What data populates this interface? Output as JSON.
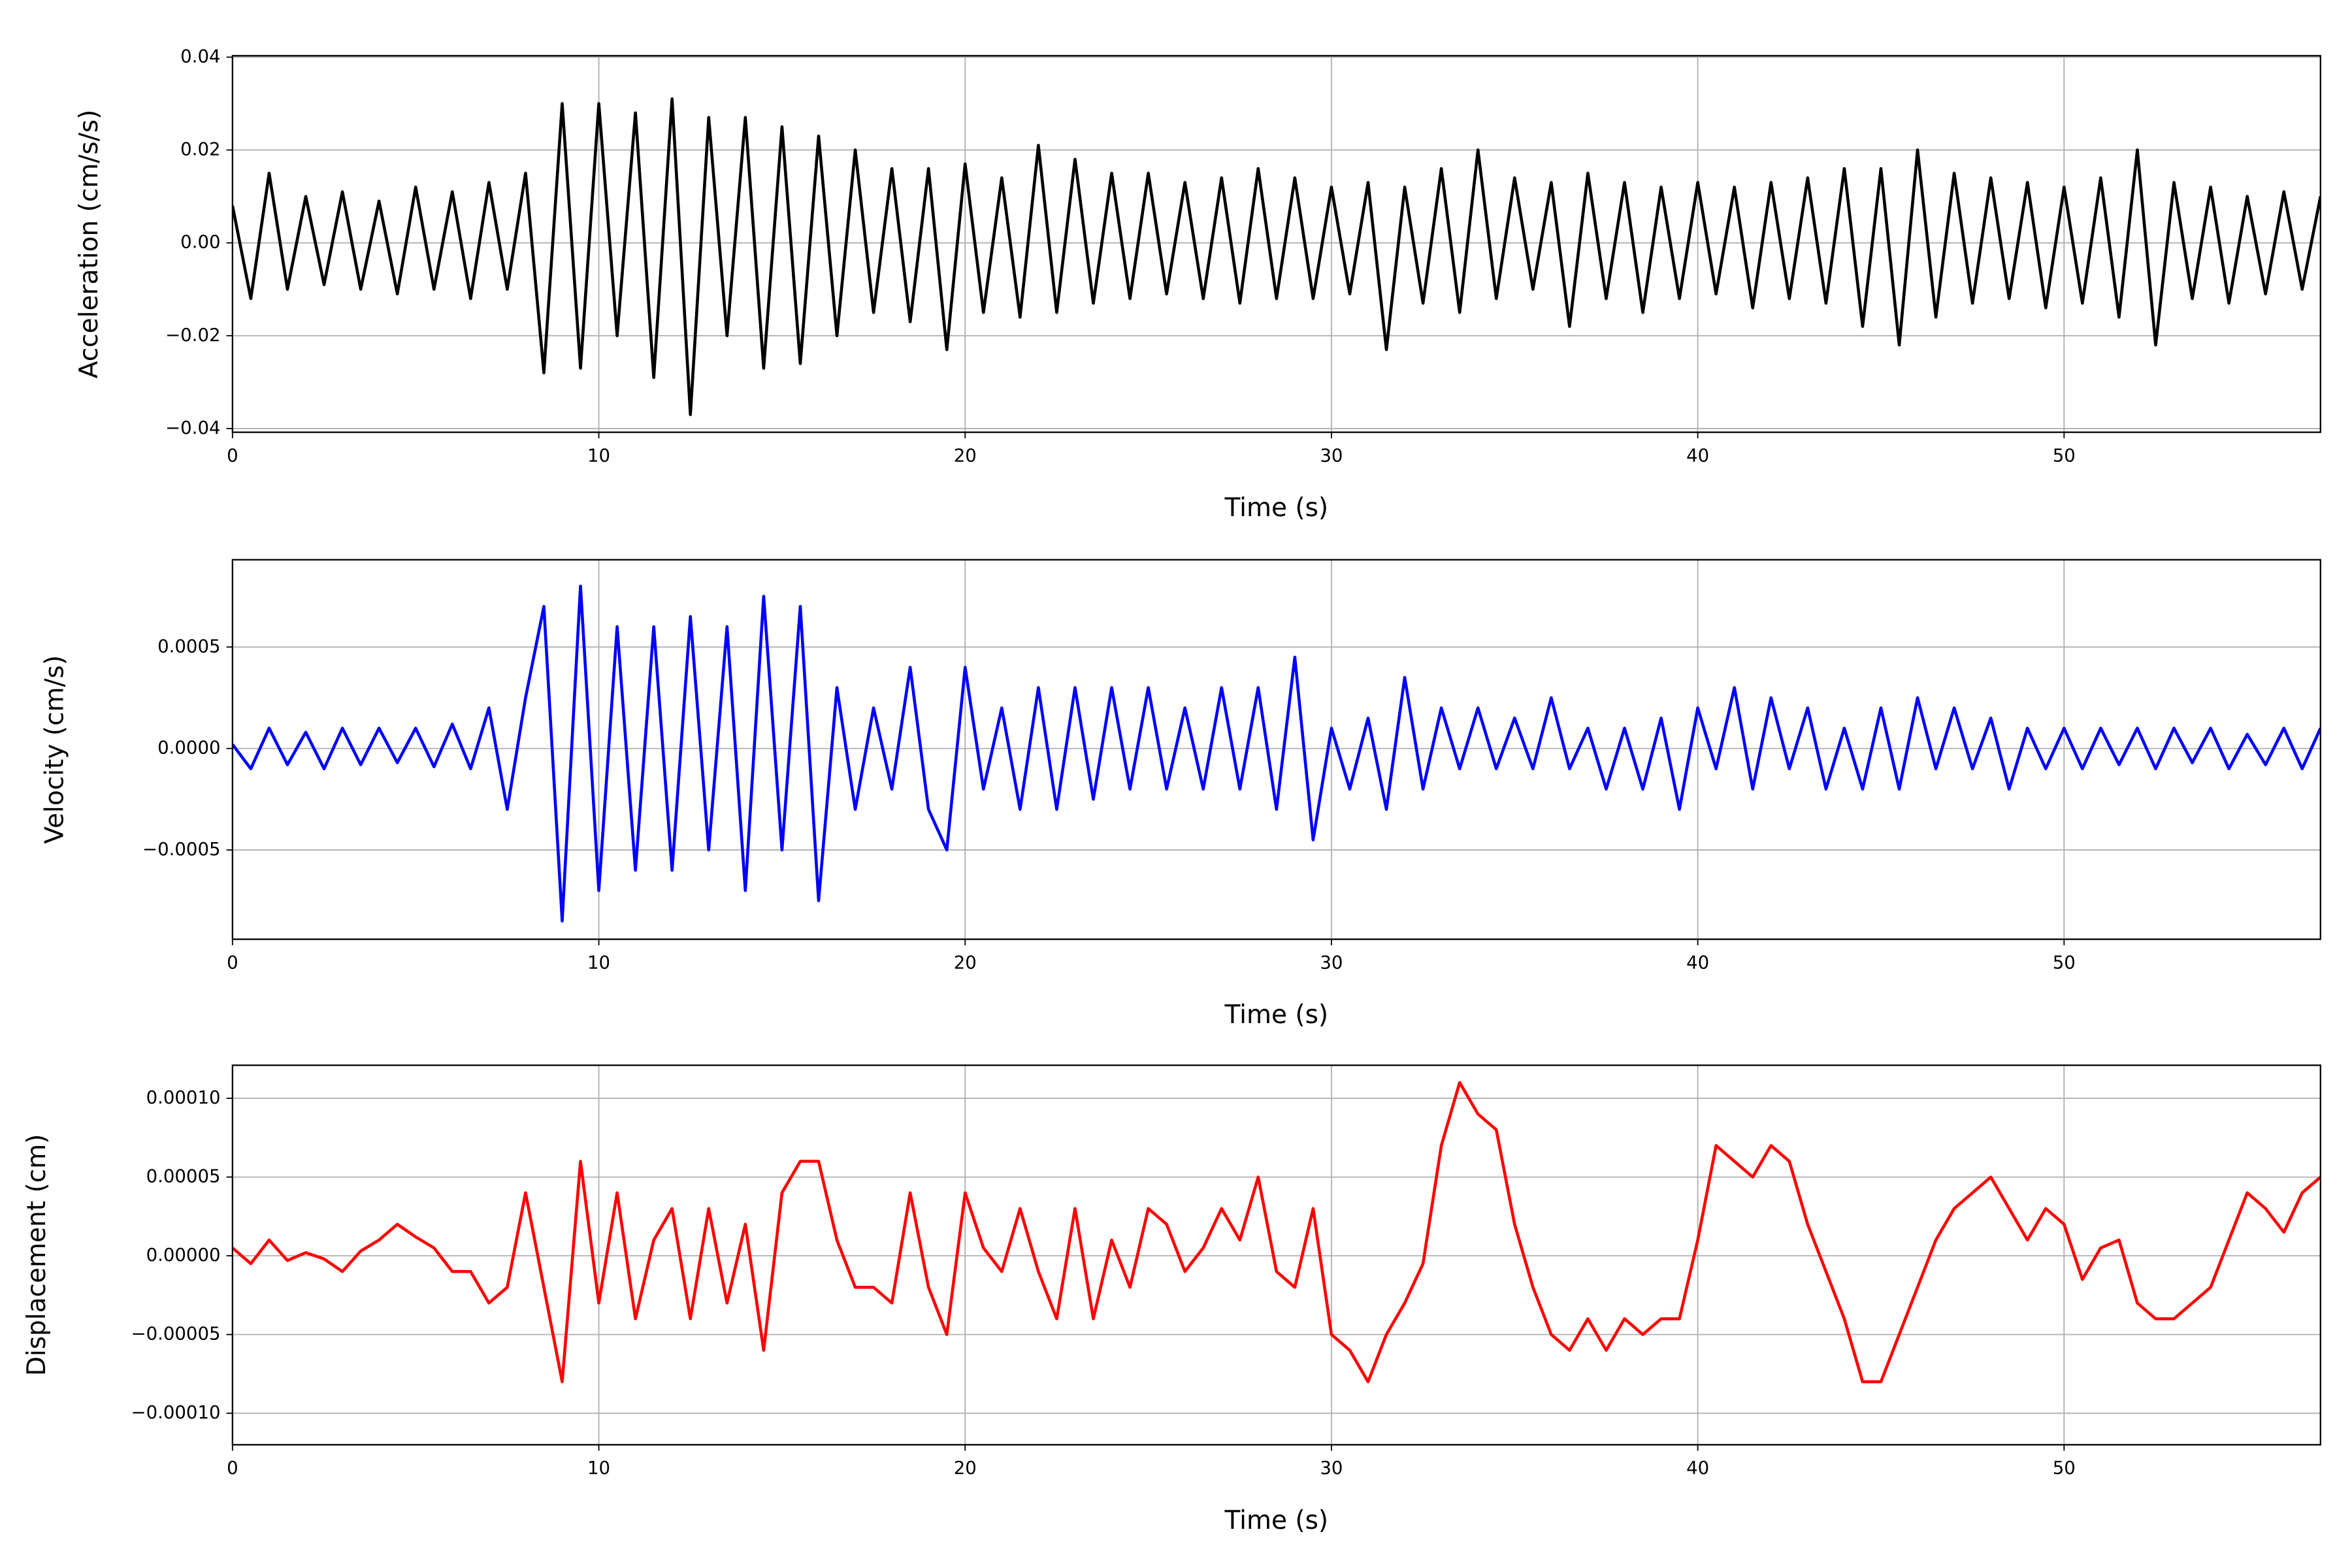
{
  "chart_data": [
    {
      "type": "line",
      "xlabel": "Time (s)",
      "ylabel": "Acceleration (cm/s/s)",
      "color": "#000000",
      "grid": true,
      "xlim": [
        0,
        57
      ],
      "xticks": [
        0,
        10,
        20,
        30,
        40,
        50
      ],
      "ylim": [
        -0.0408,
        0.0403
      ],
      "yticks": [
        {
          "value": -0.04,
          "label": "−0.04"
        },
        {
          "value": -0.02,
          "label": "−0.02"
        },
        {
          "value": 0,
          "label": "0.00"
        },
        {
          "value": 0.02,
          "label": "0.02"
        },
        {
          "value": 0.04,
          "label": "0.04"
        }
      ],
      "x": [
        0,
        0.5,
        1,
        1.5,
        2,
        2.5,
        3,
        3.5,
        4,
        4.5,
        5,
        5.5,
        6,
        6.5,
        7,
        7.5,
        8,
        8.5,
        9,
        9.5,
        10,
        10.5,
        11,
        11.5,
        12,
        12.5,
        13,
        13.5,
        14,
        14.5,
        15,
        15.5,
        16,
        16.5,
        17,
        17.5,
        18,
        18.5,
        19,
        19.5,
        20,
        20.5,
        21,
        21.5,
        22,
        22.5,
        23,
        23.5,
        24,
        24.5,
        25,
        25.5,
        26,
        26.5,
        27,
        27.5,
        28,
        28.5,
        29,
        29.5,
        30,
        30.5,
        31,
        31.5,
        32,
        32.5,
        33,
        33.5,
        34,
        34.5,
        35,
        35.5,
        36,
        36.5,
        37,
        37.5,
        38,
        38.5,
        39,
        39.5,
        40,
        40.5,
        41,
        41.5,
        42,
        42.5,
        43,
        43.5,
        44,
        44.5,
        45,
        45.5,
        46,
        46.5,
        47,
        47.5,
        48,
        48.5,
        49,
        49.5,
        50,
        50.5,
        51,
        51.5,
        52,
        52.5,
        53,
        53.5,
        54,
        54.5,
        55,
        55.5,
        56,
        56.5,
        57
      ],
      "values": [
        0.008,
        -0.012,
        0.015,
        -0.01,
        0.01,
        -0.009,
        0.011,
        -0.01,
        0.009,
        -0.011,
        0.012,
        -0.01,
        0.011,
        -0.012,
        0.013,
        -0.01,
        0.015,
        -0.028,
        0.03,
        -0.027,
        0.03,
        -0.02,
        0.028,
        -0.029,
        0.031,
        -0.037,
        0.027,
        -0.02,
        0.027,
        -0.027,
        0.025,
        -0.026,
        0.023,
        -0.02,
        0.02,
        -0.015,
        0.016,
        -0.017,
        0.016,
        -0.023,
        0.017,
        -0.015,
        0.014,
        -0.016,
        0.021,
        -0.015,
        0.018,
        -0.013,
        0.015,
        -0.012,
        0.015,
        -0.011,
        0.013,
        -0.012,
        0.014,
        -0.013,
        0.016,
        -0.012,
        0.014,
        -0.012,
        0.012,
        -0.011,
        0.013,
        -0.023,
        0.012,
        -0.013,
        0.016,
        -0.015,
        0.02,
        -0.012,
        0.014,
        -0.01,
        0.013,
        -0.018,
        0.015,
        -0.012,
        0.013,
        -0.015,
        0.012,
        -0.012,
        0.013,
        -0.011,
        0.012,
        -0.014,
        0.013,
        -0.012,
        0.014,
        -0.013,
        0.016,
        -0.018,
        0.016,
        -0.022,
        0.02,
        -0.016,
        0.015,
        -0.013,
        0.014,
        -0.012,
        0.013,
        -0.014,
        0.012,
        -0.013,
        0.014,
        -0.016,
        0.02,
        -0.022,
        0.013,
        -0.012,
        0.012,
        -0.013,
        0.01,
        -0.011,
        0.011,
        -0.01,
        0.01
      ]
    },
    {
      "type": "line",
      "xlabel": "Time (s)",
      "ylabel": "Velocity (cm/s)",
      "color": "#0000ff",
      "grid": true,
      "xlim": [
        0,
        57
      ],
      "xticks": [
        0,
        10,
        20,
        30,
        40,
        50
      ],
      "ylim": [
        -0.00094,
        0.00093
      ],
      "yticks": [
        {
          "value": -0.0005,
          "label": "−0.0005"
        },
        {
          "value": 0,
          "label": "0.0000"
        },
        0.0005
      ],
      "x": [
        0,
        0.5,
        1,
        1.5,
        2,
        2.5,
        3,
        3.5,
        4,
        4.5,
        5,
        5.5,
        6,
        6.5,
        7,
        7.5,
        8,
        8.5,
        9,
        9.5,
        10,
        10.5,
        11,
        11.5,
        12,
        12.5,
        13,
        13.5,
        14,
        14.5,
        15,
        15.5,
        16,
        16.5,
        17,
        17.5,
        18,
        18.5,
        19,
        19.5,
        20,
        20.5,
        21,
        21.5,
        22,
        22.5,
        23,
        23.5,
        24,
        24.5,
        25,
        25.5,
        26,
        26.5,
        27,
        27.5,
        28,
        28.5,
        29,
        29.5,
        30,
        30.5,
        31,
        31.5,
        32,
        32.5,
        33,
        33.5,
        34,
        34.5,
        35,
        35.5,
        36,
        36.5,
        37,
        37.5,
        38,
        38.5,
        39,
        39.5,
        40,
        40.5,
        41,
        41.5,
        42,
        42.5,
        43,
        43.5,
        44,
        44.5,
        45,
        45.5,
        46,
        46.5,
        47,
        47.5,
        48,
        48.5,
        49,
        49.5,
        50,
        50.5,
        51,
        51.5,
        52,
        52.5,
        53,
        53.5,
        54,
        54.5,
        55,
        55.5,
        56,
        56.5,
        57
      ],
      "values": [
        2e-05,
        -0.0001,
        0.0001,
        -8e-05,
        8e-05,
        -0.0001,
        0.0001,
        -8e-05,
        0.0001,
        -7e-05,
        0.0001,
        -9e-05,
        0.00012,
        -0.0001,
        0.0002,
        -0.0003,
        0.00025,
        0.0007,
        -0.00085,
        0.0008,
        -0.0007,
        0.0006,
        -0.0006,
        0.0006,
        -0.0006,
        0.00065,
        -0.0005,
        0.0006,
        -0.0007,
        0.00075,
        -0.0005,
        0.0007,
        -0.00075,
        0.0003,
        -0.0003,
        0.0002,
        -0.0002,
        0.0004,
        -0.0003,
        -0.0005,
        0.0004,
        -0.0002,
        0.0002,
        -0.0003,
        0.0003,
        -0.0003,
        0.0003,
        -0.00025,
        0.0003,
        -0.0002,
        0.0003,
        -0.0002,
        0.0002,
        -0.0002,
        0.0003,
        -0.0002,
        0.0003,
        -0.0003,
        0.00045,
        -0.00045,
        0.0001,
        -0.0002,
        0.00015,
        -0.0003,
        0.00035,
        -0.0002,
        0.0002,
        -0.0001,
        0.0002,
        -0.0001,
        0.00015,
        -0.0001,
        0.00025,
        -0.0001,
        0.0001,
        -0.0002,
        0.0001,
        -0.0002,
        0.00015,
        -0.0003,
        0.0002,
        -0.0001,
        0.0003,
        -0.0002,
        0.00025,
        -0.0001,
        0.0002,
        -0.0002,
        0.0001,
        -0.0002,
        0.0002,
        -0.0002,
        0.00025,
        -0.0001,
        0.0002,
        -0.0001,
        0.00015,
        -0.0002,
        0.0001,
        -0.0001,
        0.0001,
        -0.0001,
        0.0001,
        -8e-05,
        0.0001,
        -0.0001,
        0.0001,
        -7e-05,
        0.0001,
        -0.0001,
        7e-05,
        -8e-05,
        0.0001,
        -0.0001,
        0.0001
      ]
    },
    {
      "type": "line",
      "xlabel": "Time (s)",
      "ylabel": "Displacement (cm)",
      "color": "#ff0000",
      "grid": true,
      "xlim": [
        0,
        57
      ],
      "xticks": [
        0,
        10,
        20,
        30,
        40,
        50
      ],
      "ylim": [
        -0.00012,
        0.000121
      ],
      "yticks": [
        {
          "value": -0.0001,
          "label": "−0.00010"
        },
        {
          "value": -5e-05,
          "label": "−0.00005"
        },
        {
          "value": 0,
          "label": "0.00000"
        },
        {
          "value": 5e-05,
          "label": "0.00005"
        },
        {
          "value": 0.0001,
          "label": "0.00010"
        }
      ],
      "x": [
        0,
        0.5,
        1,
        1.5,
        2,
        2.5,
        3,
        3.5,
        4,
        4.5,
        5,
        5.5,
        6,
        6.5,
        7,
        7.5,
        8,
        8.5,
        9,
        9.5,
        10,
        10.5,
        11,
        11.5,
        12,
        12.5,
        13,
        13.5,
        14,
        14.5,
        15,
        15.5,
        16,
        16.5,
        17,
        17.5,
        18,
        18.5,
        19,
        19.5,
        20,
        20.5,
        21,
        21.5,
        22,
        22.5,
        23,
        23.5,
        24,
        24.5,
        25,
        25.5,
        26,
        26.5,
        27,
        27.5,
        28,
        28.5,
        29,
        29.5,
        30,
        30.5,
        31,
        31.5,
        32,
        32.5,
        33,
        33.5,
        34,
        34.5,
        35,
        35.5,
        36,
        36.5,
        37,
        37.5,
        38,
        38.5,
        39,
        39.5,
        40,
        40.5,
        41,
        41.5,
        42,
        42.5,
        43,
        43.5,
        44,
        44.5,
        45,
        45.5,
        46,
        46.5,
        47,
        47.5,
        48,
        48.5,
        49,
        49.5,
        50,
        50.5,
        51,
        51.5,
        52,
        52.5,
        53,
        53.5,
        54,
        54.5,
        55,
        55.5,
        56,
        56.5,
        57
      ],
      "values": [
        5e-06,
        -5e-06,
        1e-05,
        -3e-06,
        2e-06,
        -2e-06,
        -1e-05,
        3e-06,
        1e-05,
        2e-05,
        1.2e-05,
        5e-06,
        -1e-05,
        -1e-05,
        -3e-05,
        -2e-05,
        4e-05,
        -2e-05,
        -8e-05,
        6e-05,
        -3e-05,
        4e-05,
        -4e-05,
        1e-05,
        3e-05,
        -4e-05,
        3e-05,
        -3e-05,
        2e-05,
        -6e-05,
        4e-05,
        6e-05,
        6e-05,
        1e-05,
        -2e-05,
        -2e-05,
        -3e-05,
        4e-05,
        -2e-05,
        -5e-05,
        4e-05,
        5e-06,
        -1e-05,
        3e-05,
        -1e-05,
        -4e-05,
        3e-05,
        -4e-05,
        1e-05,
        -2e-05,
        3e-05,
        2e-05,
        -1e-05,
        5e-06,
        3e-05,
        1e-05,
        5e-05,
        -1e-05,
        -2e-05,
        3e-05,
        -5e-05,
        -6e-05,
        -8e-05,
        -5e-05,
        -3e-05,
        -5e-06,
        7e-05,
        0.00011,
        9e-05,
        8e-05,
        2e-05,
        -2e-05,
        -5e-05,
        -6e-05,
        -4e-05,
        -6e-05,
        -4e-05,
        -5e-05,
        -4e-05,
        -4e-05,
        1e-05,
        7e-05,
        6e-05,
        5e-05,
        7e-05,
        6e-05,
        2e-05,
        -1e-05,
        -4e-05,
        -8e-05,
        -8e-05,
        -5e-05,
        -2e-05,
        1e-05,
        3e-05,
        4e-05,
        5e-05,
        3e-05,
        1e-05,
        3e-05,
        2e-05,
        -1.5e-05,
        5e-06,
        1e-05,
        -3e-05,
        -4e-05,
        -4e-05,
        -3e-05,
        -2e-05,
        1e-05,
        4e-05,
        3e-05,
        1.5e-05,
        4e-05,
        5e-05
      ]
    }
  ]
}
